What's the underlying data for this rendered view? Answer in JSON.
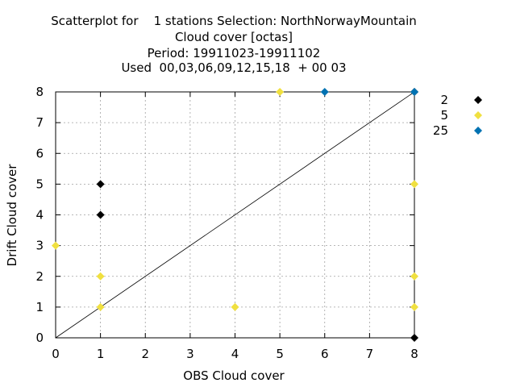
{
  "chart_data": {
    "type": "scatter",
    "title_lines": [
      "Scatterplot for    1 stations Selection: NorthNorwayMountain",
      "Cloud cover [octas]",
      "Period: 19911023-19911102",
      "Used  00,03,06,09,12,15,18  + 00 03"
    ],
    "xlabel": "OBS Cloud cover",
    "ylabel": "Drift Cloud cover",
    "xlim": [
      0,
      8
    ],
    "ylim": [
      0,
      8
    ],
    "xticks": [
      "0",
      "1",
      "2",
      "3",
      "4",
      "5",
      "6",
      "7",
      "8"
    ],
    "yticks": [
      "0",
      "1",
      "2",
      "3",
      "4",
      "5",
      "6",
      "7",
      "8"
    ],
    "grid": true,
    "diagonal_line": true,
    "legend_position": "right",
    "series": [
      {
        "name": "2",
        "color": "#000000",
        "points": [
          [
            1,
            5
          ],
          [
            1,
            4
          ],
          [
            8,
            0
          ],
          [
            8,
            8
          ]
        ]
      },
      {
        "name": "5",
        "color": "#f0e040",
        "points": [
          [
            0,
            3
          ],
          [
            1,
            2
          ],
          [
            1,
            1
          ],
          [
            4,
            1
          ],
          [
            5,
            8
          ],
          [
            8,
            5
          ],
          [
            8,
            2
          ],
          [
            8,
            1
          ]
        ]
      },
      {
        "name": "25",
        "color": "#0072b2",
        "points": [
          [
            6,
            8
          ],
          [
            8,
            8
          ]
        ]
      }
    ]
  }
}
